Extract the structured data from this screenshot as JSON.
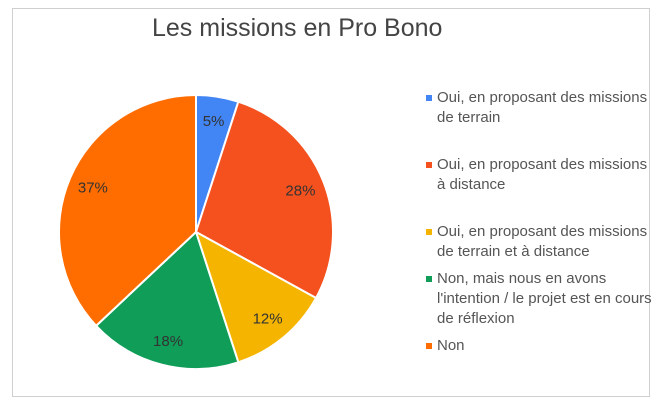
{
  "chart_data": {
    "type": "pie",
    "title": "Les missions en Pro Bono",
    "slices": [
      {
        "label": "Oui, en proposant des missions de terrain",
        "value": 5,
        "display": "5%",
        "color": "#4285f4"
      },
      {
        "label": "Oui, en proposant des missions à distance",
        "value": 28,
        "display": "28%",
        "color": "#f4511e"
      },
      {
        "label": "Oui, en proposant des missions de terrain et à distance",
        "value": 12,
        "display": "12%",
        "color": "#f4b400"
      },
      {
        "label": "Non, mais nous en avons l'intention / le projet est en cours de réflexion",
        "value": 18,
        "display": "18%",
        "color": "#0f9d58"
      },
      {
        "label": "Non",
        "value": 37,
        "display": "37%",
        "color": "#ff6d00"
      }
    ],
    "legend_position": "right",
    "start": "top, clockwise"
  }
}
